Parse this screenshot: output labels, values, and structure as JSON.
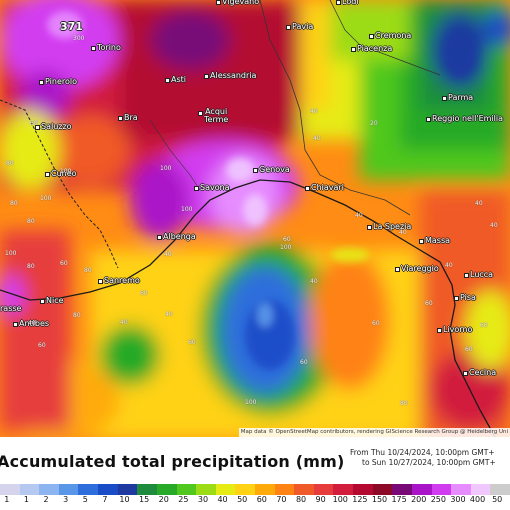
{
  "map": {
    "cities": [
      {
        "name": "Vigevano",
        "dot": true
      },
      {
        "name": "Lodi",
        "dot": true
      },
      {
        "name": "Pavia",
        "dot": true
      },
      {
        "name": "Cremona",
        "dot": true
      },
      {
        "name": "Torino",
        "dot": true
      },
      {
        "name": "Piacenza",
        "dot": true
      },
      {
        "name": "Pinerolo",
        "dot": true
      },
      {
        "name": "Asti",
        "dot": true
      },
      {
        "name": "Alessandria",
        "dot": true
      },
      {
        "name": "Parma",
        "dot": true
      },
      {
        "name": "Bra",
        "dot": true
      },
      {
        "name": "Acqui\nTerme",
        "dot": true
      },
      {
        "name": "Reggio nell'Emilia",
        "dot": true
      },
      {
        "name": "Saluzzo",
        "dot": true
      },
      {
        "name": "Genova",
        "dot": true
      },
      {
        "name": "Cuneo",
        "dot": true
      },
      {
        "name": "Chiavari",
        "dot": true
      },
      {
        "name": "Savona",
        "dot": true
      },
      {
        "name": "La Spezia",
        "dot": true
      },
      {
        "name": "Massa",
        "dot": true
      },
      {
        "name": "Albenga",
        "dot": true
      },
      {
        "name": "Viareggio",
        "dot": true
      },
      {
        "name": "Lucca",
        "dot": true
      },
      {
        "name": "Sanremo",
        "dot": true
      },
      {
        "name": "Pisa",
        "dot": true
      },
      {
        "name": "Nice",
        "dot": true
      },
      {
        "name": "rasse",
        "dot": false
      },
      {
        "name": "Antibes",
        "dot": true
      },
      {
        "name": "Livorno",
        "dot": true
      },
      {
        "name": "Cecina",
        "dot": true
      }
    ],
    "values": [
      "371",
      "300",
      "40",
      "40",
      "60",
      "80",
      "100",
      "80",
      "80",
      "100",
      "100",
      "100",
      "40",
      "40",
      "60",
      "80",
      "100",
      "60",
      "40",
      "80",
      "60",
      "40",
      "40",
      "100",
      "80",
      "60",
      "40",
      "40",
      "60",
      "100",
      "80",
      "60",
      "60",
      "20",
      "40",
      "40",
      "40",
      "60",
      "60",
      "60"
    ],
    "attribution": "Map data © OpenStreetMap contributors, rendering GIScience Research Group @ Heidelberg Uni"
  },
  "legend": {
    "title": "Accumulated total precipitation (mm)",
    "period_from": "From Thu 10/24/2024, 10:00pm GMT+",
    "period_to": "to Sun 10/27/2024, 10:00pm GMT+",
    "scale": [
      {
        "label": "1",
        "color": "#d4d4ec"
      },
      {
        "label": "1",
        "color": "#b4c8f0"
      },
      {
        "label": "2",
        "color": "#8cb4f0"
      },
      {
        "label": "3",
        "color": "#5a96e8"
      },
      {
        "label": "5",
        "color": "#2e6edc"
      },
      {
        "label": "7",
        "color": "#1a4cc8"
      },
      {
        "label": "10",
        "color": "#1e3aa0"
      },
      {
        "label": "15",
        "color": "#1e8c3c"
      },
      {
        "label": "20",
        "color": "#28aa28"
      },
      {
        "label": "25",
        "color": "#50c81e"
      },
      {
        "label": "30",
        "color": "#9cdc14"
      },
      {
        "label": "40",
        "color": "#e6eb14"
      },
      {
        "label": "50",
        "color": "#ffd214"
      },
      {
        "label": "60",
        "color": "#ffaa0a"
      },
      {
        "label": "70",
        "color": "#ff8214"
      },
      {
        "label": "80",
        "color": "#f05a28"
      },
      {
        "label": "90",
        "color": "#e63c3c"
      },
      {
        "label": "100",
        "color": "#d21e3c"
      },
      {
        "label": "125",
        "color": "#b40a32"
      },
      {
        "label": "150",
        "color": "#8c0a28"
      },
      {
        "label": "175",
        "color": "#780a78"
      },
      {
        "label": "200",
        "color": "#aa14c8"
      },
      {
        "label": "250",
        "color": "#d23cf0"
      },
      {
        "label": "300",
        "color": "#e68cff"
      },
      {
        "label": "400",
        "color": "#f0c8ff"
      },
      {
        "label": "50",
        "color": "#cccccc"
      }
    ]
  }
}
